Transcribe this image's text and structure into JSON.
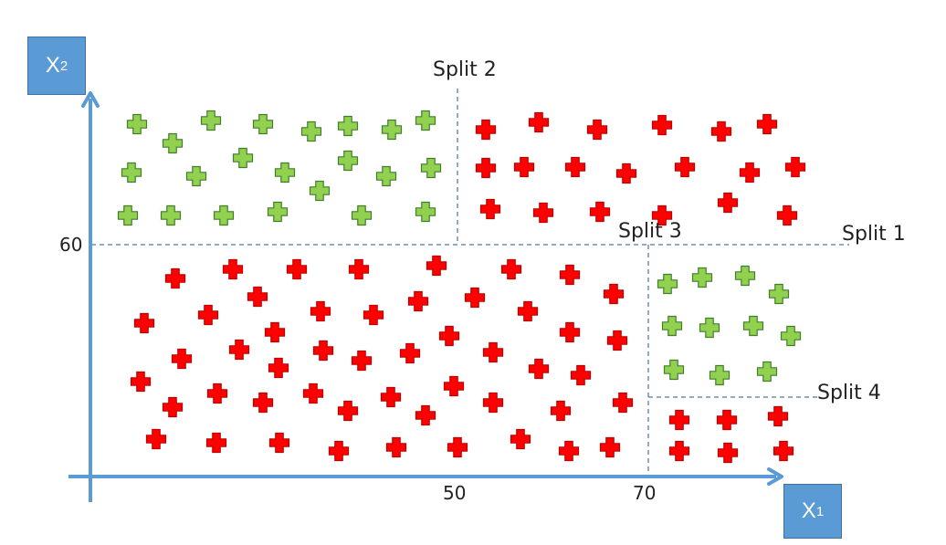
{
  "axes": {
    "x_label_main": "X",
    "x_label_sub": "1",
    "y_label_main": "X",
    "y_label_sub": "2",
    "x_ticks": [
      "50",
      "70"
    ],
    "y_ticks": [
      "60"
    ]
  },
  "splits": {
    "split1": "Split 1",
    "split2": "Split 2",
    "split3": "Split 3",
    "split4": "Split 4"
  },
  "colors": {
    "axis": "#5b9bd5",
    "split_line": "#6f8db5",
    "class_a": "#ff0000",
    "class_b": "#92d050"
  },
  "regions": [
    {
      "name": "upper-left",
      "class": "green"
    },
    {
      "name": "upper-right",
      "class": "red"
    },
    {
      "name": "lower-left",
      "class": "red"
    },
    {
      "name": "lower-right-upper",
      "class": "green"
    },
    {
      "name": "lower-right-lower",
      "class": "red"
    }
  ]
}
